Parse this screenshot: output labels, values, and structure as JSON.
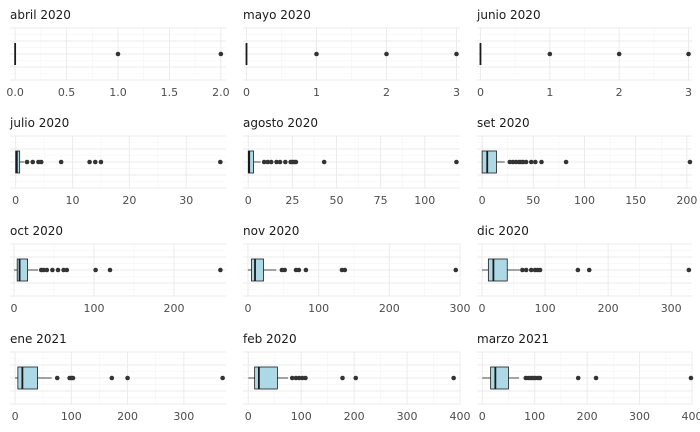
{
  "chart_data": [
    {
      "type": "boxplot",
      "title": "abril 2020",
      "xlim": [
        -0.05,
        2.05
      ],
      "ticks": [
        0,
        0.5,
        1,
        1.5,
        2
      ],
      "tick_labels": [
        "0.0",
        "0.5",
        "1.0",
        "1.5",
        "2.0"
      ],
      "box": {
        "min": 0,
        "q1": 0,
        "median": 0,
        "q3": 0,
        "max": 0
      },
      "outliers": [
        1,
        2
      ]
    },
    {
      "type": "boxplot",
      "title": "mayo 2020",
      "xlim": [
        -0.05,
        3.05
      ],
      "ticks": [
        0,
        1,
        2,
        3
      ],
      "tick_labels": [
        "0",
        "1",
        "2",
        "3"
      ],
      "box": {
        "min": 0,
        "q1": 0,
        "median": 0,
        "q3": 0,
        "max": 0
      },
      "outliers": [
        1,
        2,
        3
      ]
    },
    {
      "type": "boxplot",
      "title": "junio 2020",
      "xlim": [
        -0.05,
        3.05
      ],
      "ticks": [
        0,
        1,
        2,
        3
      ],
      "tick_labels": [
        "0",
        "1",
        "2",
        "3"
      ],
      "box": {
        "min": 0,
        "q1": 0,
        "median": 0,
        "q3": 0,
        "max": 0
      },
      "outliers": [
        1,
        2,
        3
      ]
    },
    {
      "type": "boxplot",
      "title": "julio 2020",
      "xlim": [
        -1,
        37
      ],
      "ticks": [
        0,
        10,
        20,
        30
      ],
      "tick_labels": [
        "0",
        "10",
        "20",
        "30"
      ],
      "box": {
        "min": 0,
        "q1": 0,
        "median": 0.2,
        "q3": 0.7,
        "max": 1.5
      },
      "outliers": [
        2,
        3,
        4,
        4.5,
        8,
        13,
        14,
        15,
        36
      ]
    },
    {
      "type": "boxplot",
      "title": "agosto 2020",
      "xlim": [
        -3,
        120
      ],
      "ticks": [
        0,
        25,
        50,
        75,
        100
      ],
      "tick_labels": [
        "0",
        "25",
        "50",
        "75",
        "100"
      ],
      "box": {
        "min": 0,
        "q1": 0,
        "median": 0.5,
        "q3": 3,
        "max": 7
      },
      "outliers": [
        9,
        11,
        13,
        16,
        18,
        21,
        24,
        25,
        26,
        27,
        43,
        118
      ]
    },
    {
      "type": "boxplot",
      "title": "set 2020",
      "xlim": [
        -5,
        205
      ],
      "ticks": [
        0,
        50,
        100,
        150,
        200
      ],
      "tick_labels": [
        "0",
        "50",
        "100",
        "150",
        "200"
      ],
      "box": {
        "min": 0,
        "q1": 0,
        "median": 5,
        "q3": 14,
        "max": 22
      },
      "outliers": [
        27,
        30,
        33,
        36,
        38,
        40,
        43,
        48,
        52,
        58,
        82,
        203
      ]
    },
    {
      "type": "boxplot",
      "title": "oct 2020",
      "xlim": [
        -5,
        265
      ],
      "ticks": [
        0,
        100,
        200
      ],
      "tick_labels": [
        "0",
        "100",
        "200"
      ],
      "box": {
        "min": 0,
        "q1": 4,
        "median": 7,
        "q3": 17,
        "max": 30
      },
      "outliers": [
        34,
        37,
        41,
        48,
        55,
        62,
        66,
        102,
        120,
        258
      ]
    },
    {
      "type": "boxplot",
      "title": "nov 2020",
      "xlim": [
        -7,
        300
      ],
      "ticks": [
        0,
        100,
        200,
        300
      ],
      "tick_labels": [
        "0",
        "100",
        "200",
        "300"
      ],
      "box": {
        "min": 0,
        "q1": 5,
        "median": 10,
        "q3": 22,
        "max": 40
      },
      "outliers": [
        48,
        52,
        68,
        72,
        82,
        133,
        137,
        294
      ]
    },
    {
      "type": "boxplot",
      "title": "dic 2020",
      "xlim": [
        -8,
        333
      ],
      "ticks": [
        0,
        100,
        200,
        300
      ],
      "tick_labels": [
        "0",
        "100",
        "200",
        "300"
      ],
      "box": {
        "min": 0,
        "q1": 10,
        "median": 18,
        "q3": 40,
        "max": 60
      },
      "outliers": [
        64,
        70,
        78,
        84,
        88,
        92,
        152,
        170,
        328
      ]
    },
    {
      "type": "boxplot",
      "title": "ene 2021",
      "xlim": [
        -9,
        375
      ],
      "ticks": [
        0,
        100,
        200,
        300
      ],
      "tick_labels": [
        "0",
        "100",
        "200",
        "300"
      ],
      "box": {
        "min": 0,
        "q1": 5,
        "median": 13,
        "q3": 40,
        "max": 65
      },
      "outliers": [
        75,
        97,
        100,
        103,
        172,
        200,
        369
      ]
    },
    {
      "type": "boxplot",
      "title": "feb 2020",
      "xlim": [
        -10,
        400
      ],
      "ticks": [
        0,
        100,
        200,
        300,
        400
      ],
      "tick_labels": [
        "0",
        "100",
        "200",
        "300",
        "400"
      ],
      "box": {
        "min": 0,
        "q1": 12,
        "median": 20,
        "q3": 55,
        "max": 75
      },
      "outliers": [
        83,
        90,
        96,
        102,
        108,
        178,
        203,
        388
      ]
    },
    {
      "type": "boxplot",
      "title": "marzo 2021",
      "xlim": [
        -10,
        400
      ],
      "ticks": [
        0,
        100,
        200,
        300,
        400
      ],
      "tick_labels": [
        "0",
        "100",
        "200",
        "300",
        "400"
      ],
      "box": {
        "min": 0,
        "q1": 16,
        "median": 25,
        "q3": 50,
        "max": 70
      },
      "outliers": [
        83,
        88,
        93,
        97,
        101,
        106,
        110,
        183,
        217,
        398
      ]
    }
  ],
  "colors": {
    "box_fill": "#add8e6",
    "box_stroke": "#1a1a1a",
    "outlier": "#333333",
    "grid_major": "#ebebeb",
    "grid_minor": "#f4f4f4"
  }
}
